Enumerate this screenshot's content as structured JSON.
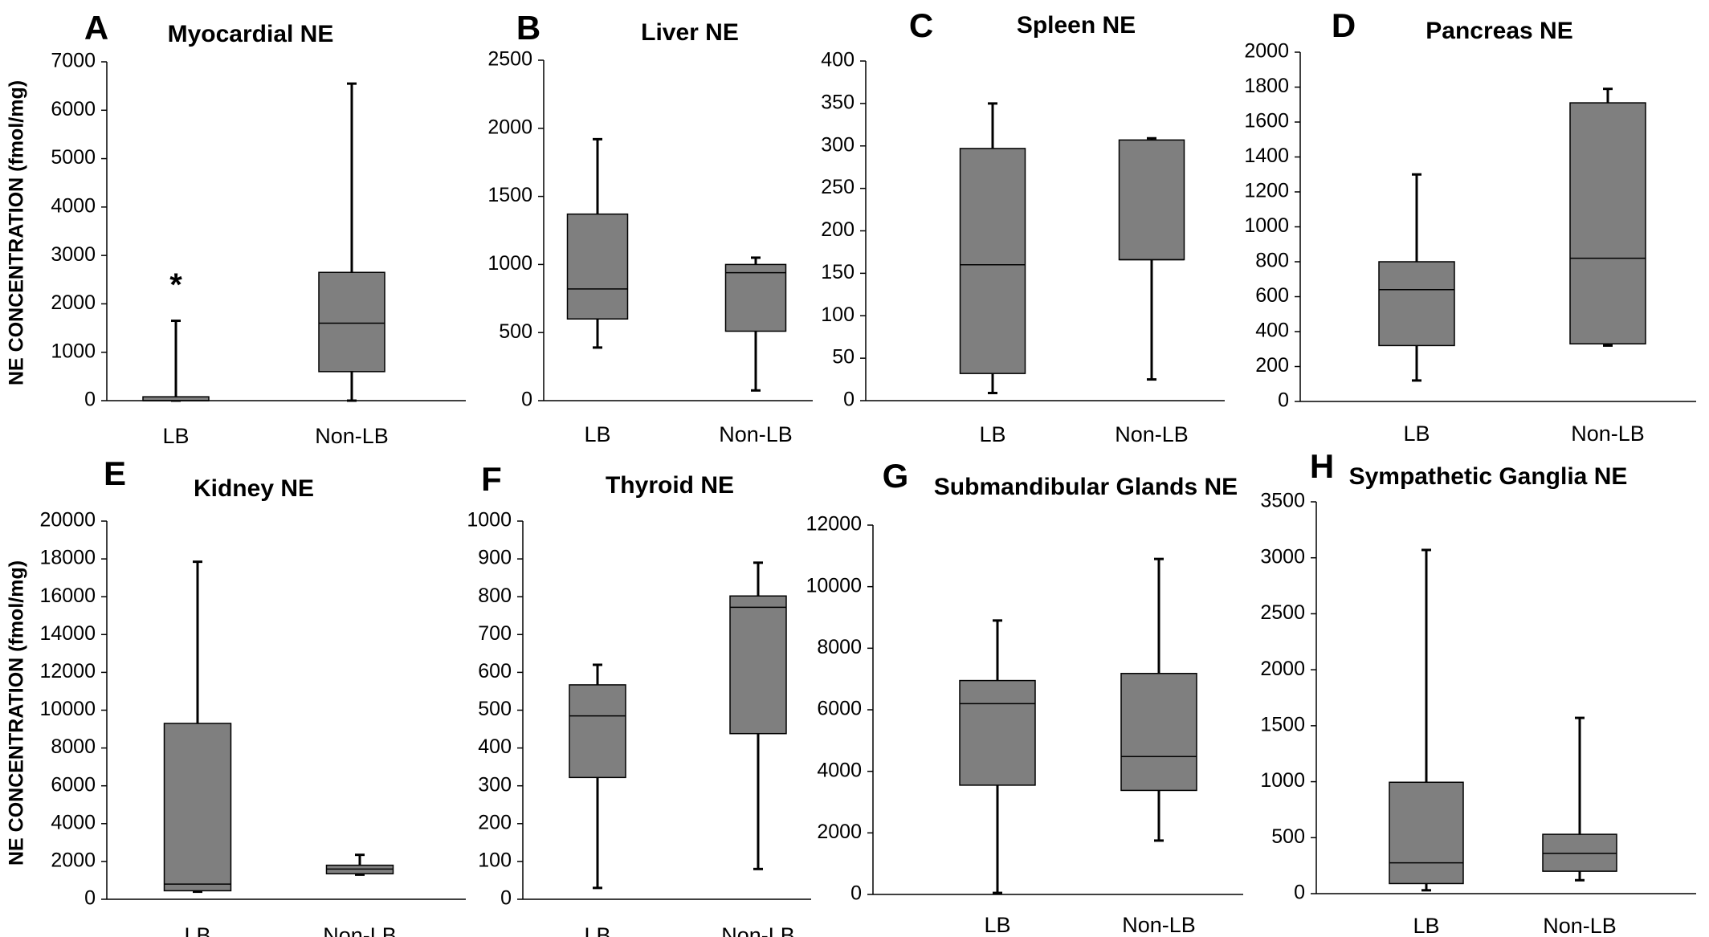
{
  "chart_data": [
    {
      "panel": "A",
      "type": "box",
      "title": "Myocardial NE",
      "ylabel": "NE CONCENTRATION (fmol/mg)",
      "ylim": [
        0,
        7000
      ],
      "yticks": [
        0,
        1000,
        2000,
        3000,
        4000,
        5000,
        6000,
        7000
      ],
      "categories": [
        "LB",
        "Non-LB"
      ],
      "boxes": [
        {
          "category": "LB",
          "min": 0,
          "q1": 0,
          "median": 0,
          "q3": 80,
          "max": 1650
        },
        {
          "category": "Non-LB",
          "min": 0,
          "q1": 600,
          "median": 1600,
          "q3": 2650,
          "max": 6550
        }
      ],
      "annotations": [
        {
          "text": "*",
          "category": "LB"
        }
      ]
    },
    {
      "panel": "B",
      "type": "box",
      "title": "Liver NE",
      "ylim": [
        0,
        2500
      ],
      "yticks": [
        0,
        500,
        1000,
        1500,
        2000,
        2500
      ],
      "categories": [
        "LB",
        "Non-LB"
      ],
      "boxes": [
        {
          "category": "LB",
          "min": 390,
          "q1": 600,
          "median": 820,
          "q3": 1370,
          "max": 1920
        },
        {
          "category": "Non-LB",
          "min": 75,
          "q1": 510,
          "median": 940,
          "q3": 1000,
          "max": 1050
        }
      ]
    },
    {
      "panel": "C",
      "type": "box",
      "title": "Spleen NE",
      "ylim": [
        0,
        400
      ],
      "yticks": [
        0,
        50,
        100,
        150,
        200,
        250,
        300,
        350,
        400
      ],
      "categories": [
        "LB",
        "Non-LB"
      ],
      "boxes": [
        {
          "category": "LB",
          "min": 9,
          "q1": 32,
          "median": 160,
          "q3": 297,
          "max": 350
        },
        {
          "category": "Non-LB",
          "min": 25,
          "q1": 166,
          "median": 166,
          "q3": 307,
          "max": 309
        }
      ]
    },
    {
      "panel": "D",
      "type": "box",
      "title": "Pancreas NE",
      "ylim": [
        0,
        2000
      ],
      "yticks": [
        0,
        200,
        400,
        600,
        800,
        1000,
        1200,
        1400,
        1600,
        1800,
        2000
      ],
      "categories": [
        "LB",
        "Non-LB"
      ],
      "boxes": [
        {
          "category": "LB",
          "min": 120,
          "q1": 320,
          "median": 640,
          "q3": 800,
          "max": 1300
        },
        {
          "category": "Non-LB",
          "min": 320,
          "q1": 330,
          "median": 820,
          "q3": 1710,
          "max": 1790
        }
      ]
    },
    {
      "panel": "E",
      "type": "box",
      "title": "Kidney NE",
      "ylabel": "NE CONCENTRATION (fmol/mg)",
      "ylim": [
        0,
        20000
      ],
      "yticks": [
        0,
        2000,
        4000,
        6000,
        8000,
        10000,
        12000,
        14000,
        16000,
        18000,
        20000
      ],
      "categories": [
        "LB",
        "Non-LB"
      ],
      "boxes": [
        {
          "category": "LB",
          "min": 400,
          "q1": 450,
          "median": 800,
          "q3": 9300,
          "max": 17850
        },
        {
          "category": "Non-LB",
          "min": 1300,
          "q1": 1350,
          "median": 1600,
          "q3": 1800,
          "max": 2350
        }
      ]
    },
    {
      "panel": "F",
      "type": "box",
      "title": "Thyroid NE",
      "ylim": [
        0,
        1000
      ],
      "yticks": [
        0,
        100,
        200,
        300,
        400,
        500,
        600,
        700,
        800,
        900,
        1000
      ],
      "categories": [
        "LB",
        "Non-LB"
      ],
      "boxes": [
        {
          "category": "LB",
          "min": 30,
          "q1": 322,
          "median": 485,
          "q3": 567,
          "max": 620
        },
        {
          "category": "Non-LB",
          "min": 80,
          "q1": 438,
          "median": 772,
          "q3": 802,
          "max": 890
        }
      ]
    },
    {
      "panel": "G",
      "type": "box",
      "title": "Submandibular Glands NE",
      "ylim": [
        0,
        12000
      ],
      "yticks": [
        0,
        2000,
        4000,
        6000,
        8000,
        10000,
        12000
      ],
      "categories": [
        "LB",
        "Non-LB"
      ],
      "boxes": [
        {
          "category": "LB",
          "min": 50,
          "q1": 3550,
          "median": 6200,
          "q3": 6950,
          "max": 8900
        },
        {
          "category": "Non-LB",
          "min": 1750,
          "q1": 3380,
          "median": 4480,
          "q3": 7180,
          "max": 10900
        }
      ]
    },
    {
      "panel": "H",
      "type": "box",
      "title": "Sympathetic Ganglia NE",
      "ylim": [
        0,
        3500
      ],
      "yticks": [
        0,
        500,
        1000,
        1500,
        2000,
        2500,
        3000,
        3500
      ],
      "categories": [
        "LB",
        "Non-LB"
      ],
      "boxes": [
        {
          "category": "LB",
          "min": 30,
          "q1": 90,
          "median": 275,
          "q3": 995,
          "max": 3070
        },
        {
          "category": "Non-LB",
          "min": 120,
          "q1": 200,
          "median": 360,
          "q3": 530,
          "max": 1570
        }
      ]
    }
  ],
  "colors": {
    "box_fill": "#7f7f7f",
    "line": "#000000"
  }
}
